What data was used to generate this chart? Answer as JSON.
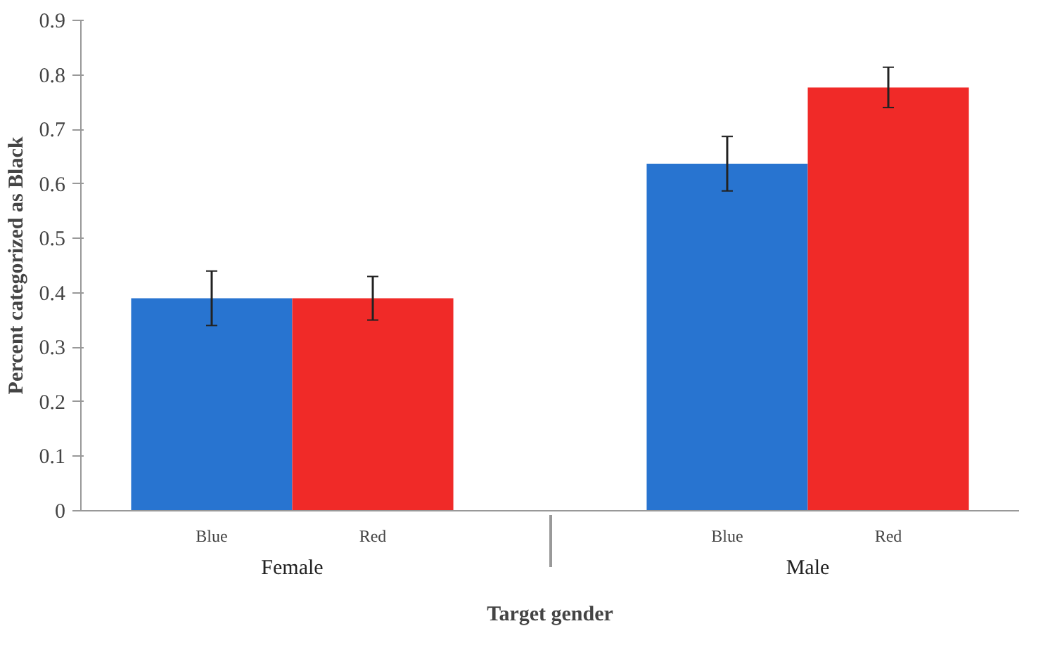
{
  "chart_data": {
    "type": "bar",
    "xlabel": "Target gender",
    "ylabel": "Percent categorized as Black",
    "categories": [
      "Female",
      "Male"
    ],
    "series": [
      {
        "name": "Blue",
        "color": "#2874d0",
        "values": [
          0.39,
          0.637
        ],
        "errors": [
          0.05,
          0.05
        ]
      },
      {
        "name": "Red",
        "color": "#f02a28",
        "values": [
          0.39,
          0.777
        ],
        "errors": [
          0.04,
          0.037
        ]
      }
    ],
    "ylim": [
      0,
      0.9
    ],
    "yticks": [
      0,
      0.1,
      0.2,
      0.3,
      0.4,
      0.5,
      0.6,
      0.7,
      0.8,
      0.9
    ],
    "grid": false
  }
}
